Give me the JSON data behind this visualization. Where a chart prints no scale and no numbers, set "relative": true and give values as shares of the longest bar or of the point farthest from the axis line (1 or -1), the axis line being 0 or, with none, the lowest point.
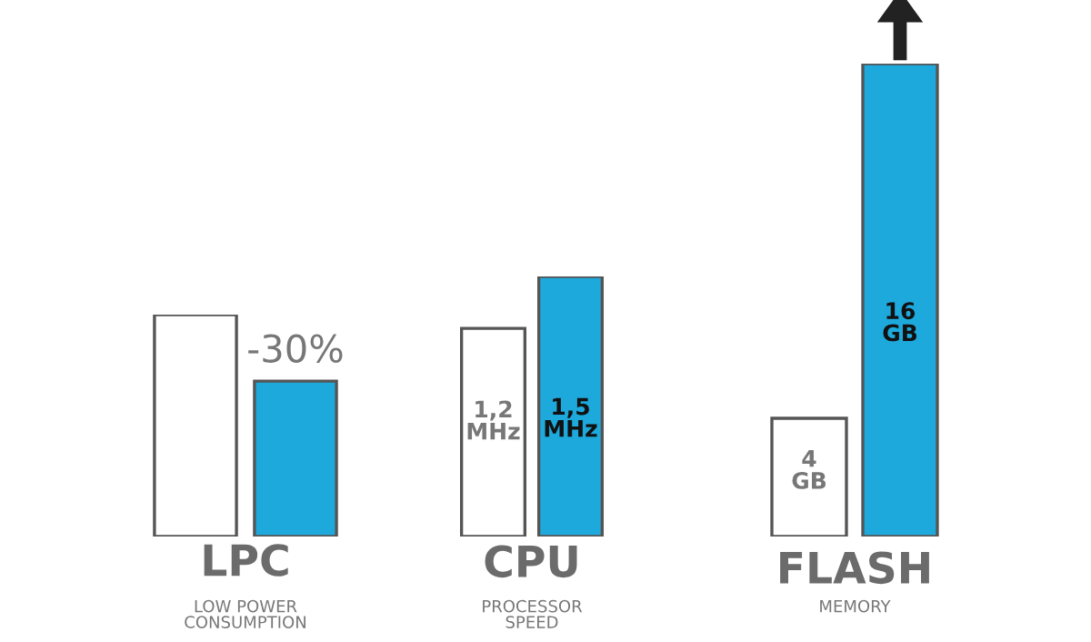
{
  "chart_data": [
    {
      "type": "bar",
      "title": "LPC",
      "subtitle": "LOW POWER\nCONSUMPTION",
      "categories": [
        null,
        null
      ],
      "relative": true,
      "values": [
        1,
        0.7
      ],
      "colors": [
        "#ffffff",
        "#1ea9dc"
      ],
      "annotations": [
        "-30%"
      ]
    },
    {
      "type": "bar",
      "title": "CPU",
      "subtitle": "PROCESSOR\nSPEED",
      "categories": [
        null,
        null
      ],
      "tick_labels": false,
      "values": [
        1.2,
        1.5
      ],
      "colors": [
        "#ffffff",
        "#1ea9dc"
      ],
      "value_labels": [
        "1,2\nMHz",
        "1,5\nMHz"
      ]
    },
    {
      "type": "bar",
      "title": "FLASH",
      "subtitle": "MEMORY",
      "categories": [
        null,
        null
      ],
      "tick_labels": false,
      "values": [
        4,
        16
      ],
      "colors": [
        "#ffffff",
        "#1ea9dc"
      ],
      "value_labels": [
        "4\nGB",
        "16\nGB"
      ]
    }
  ]
}
